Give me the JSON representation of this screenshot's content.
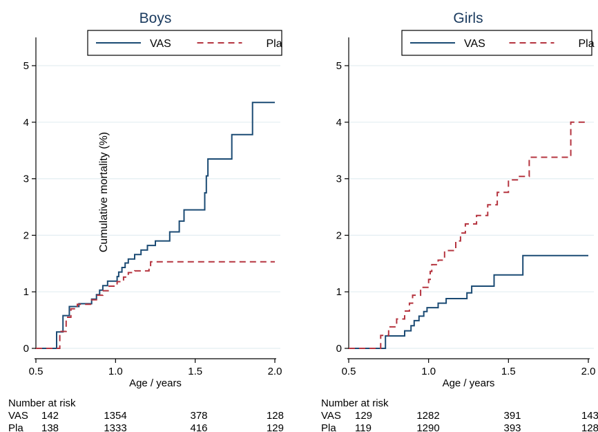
{
  "chart_data": [
    {
      "type": "line",
      "step": true,
      "title": "Boys",
      "xlabel": "Age / years",
      "ylabel": "Cumulative mortality (%)",
      "xlim": [
        0.5,
        2.0
      ],
      "ylim": [
        0,
        5.5
      ],
      "xticks": [
        0.5,
        1.0,
        1.5,
        2.0
      ],
      "xtick_labels": [
        "0.5",
        "1.0",
        "1.5",
        "2.0"
      ],
      "yticks": [
        0,
        1,
        2,
        3,
        4,
        5
      ],
      "ytick_labels": [
        "0",
        "1",
        "2",
        "3",
        "4",
        "5"
      ],
      "grid": true,
      "legend_position": "top-right",
      "series": [
        {
          "name": "VAS",
          "color": "#1a4a73",
          "dash": "solid",
          "points": [
            [
              0.5,
              0
            ],
            [
              0.63,
              0
            ],
            [
              0.63,
              0.29
            ],
            [
              0.67,
              0.29
            ],
            [
              0.67,
              0.58
            ],
            [
              0.71,
              0.58
            ],
            [
              0.71,
              0.74
            ],
            [
              0.77,
              0.74
            ],
            [
              0.77,
              0.79
            ],
            [
              0.85,
              0.79
            ],
            [
              0.85,
              0.87
            ],
            [
              0.88,
              0.87
            ],
            [
              0.88,
              0.95
            ],
            [
              0.9,
              0.95
            ],
            [
              0.9,
              1.03
            ],
            [
              0.92,
              1.03
            ],
            [
              0.92,
              1.11
            ],
            [
              0.95,
              1.11
            ],
            [
              0.95,
              1.19
            ],
            [
              1.01,
              1.19
            ],
            [
              1.01,
              1.27
            ],
            [
              1.02,
              1.27
            ],
            [
              1.02,
              1.35
            ],
            [
              1.04,
              1.35
            ],
            [
              1.04,
              1.43
            ],
            [
              1.06,
              1.43
            ],
            [
              1.06,
              1.51
            ],
            [
              1.08,
              1.51
            ],
            [
              1.08,
              1.58
            ],
            [
              1.12,
              1.58
            ],
            [
              1.12,
              1.66
            ],
            [
              1.16,
              1.66
            ],
            [
              1.16,
              1.74
            ],
            [
              1.2,
              1.74
            ],
            [
              1.2,
              1.82
            ],
            [
              1.25,
              1.82
            ],
            [
              1.25,
              1.9
            ],
            [
              1.34,
              1.9
            ],
            [
              1.34,
              2.06
            ],
            [
              1.4,
              2.06
            ],
            [
              1.4,
              2.25
            ],
            [
              1.43,
              2.25
            ],
            [
              1.43,
              2.45
            ],
            [
              1.56,
              2.45
            ],
            [
              1.56,
              2.75
            ],
            [
              1.57,
              2.75
            ],
            [
              1.57,
              3.05
            ],
            [
              1.58,
              3.05
            ],
            [
              1.58,
              3.35
            ],
            [
              1.73,
              3.35
            ],
            [
              1.73,
              3.78
            ],
            [
              1.86,
              3.78
            ],
            [
              1.86,
              4.35
            ],
            [
              2.0,
              4.35
            ]
          ]
        },
        {
          "name": "Pla",
          "color": "#b5343f",
          "dash": "dashed",
          "points": [
            [
              0.5,
              0
            ],
            [
              0.65,
              0
            ],
            [
              0.65,
              0.3
            ],
            [
              0.69,
              0.3
            ],
            [
              0.69,
              0.55
            ],
            [
              0.72,
              0.55
            ],
            [
              0.72,
              0.7
            ],
            [
              0.76,
              0.7
            ],
            [
              0.76,
              0.78
            ],
            [
              0.85,
              0.78
            ],
            [
              0.85,
              0.86
            ],
            [
              0.88,
              0.86
            ],
            [
              0.88,
              0.94
            ],
            [
              0.92,
              0.94
            ],
            [
              0.92,
              1.02
            ],
            [
              0.96,
              1.02
            ],
            [
              0.96,
              1.1
            ],
            [
              1.01,
              1.1
            ],
            [
              1.01,
              1.18
            ],
            [
              1.05,
              1.18
            ],
            [
              1.05,
              1.26
            ],
            [
              1.08,
              1.26
            ],
            [
              1.08,
              1.34
            ],
            [
              1.12,
              1.34
            ],
            [
              1.12,
              1.37
            ],
            [
              1.21,
              1.37
            ],
            [
              1.21,
              1.45
            ],
            [
              1.22,
              1.45
            ],
            [
              1.22,
              1.53
            ],
            [
              2.0,
              1.53
            ]
          ]
        }
      ],
      "risk_table": {
        "title": "Number at risk",
        "columns": [
          0.5,
          1.0,
          1.5,
          2.0
        ],
        "rows": [
          {
            "label": "VAS",
            "values": [
              "142",
              "1354",
              "378",
              "128"
            ]
          },
          {
            "label": "Pla",
            "values": [
              "138",
              "1333",
              "416",
              "129"
            ]
          }
        ]
      }
    },
    {
      "type": "line",
      "step": true,
      "title": "Girls",
      "xlabel": "Age / years",
      "ylabel": "",
      "xlim": [
        0.5,
        2.0
      ],
      "ylim": [
        0,
        5.5
      ],
      "xticks": [
        0.5,
        1.0,
        1.5,
        2.0
      ],
      "xtick_labels": [
        "0.5",
        "1.0",
        "1.5",
        "2.0"
      ],
      "yticks": [
        0,
        1,
        2,
        3,
        4,
        5
      ],
      "ytick_labels": [
        "0",
        "1",
        "2",
        "3",
        "4",
        "5"
      ],
      "grid": true,
      "legend_position": "top-right",
      "series": [
        {
          "name": "VAS",
          "color": "#1a4a73",
          "dash": "solid",
          "points": [
            [
              0.5,
              0
            ],
            [
              0.73,
              0
            ],
            [
              0.73,
              0.22
            ],
            [
              0.85,
              0.22
            ],
            [
              0.85,
              0.31
            ],
            [
              0.89,
              0.31
            ],
            [
              0.89,
              0.4
            ],
            [
              0.91,
              0.4
            ],
            [
              0.91,
              0.49
            ],
            [
              0.94,
              0.49
            ],
            [
              0.94,
              0.57
            ],
            [
              0.97,
              0.57
            ],
            [
              0.97,
              0.65
            ],
            [
              0.99,
              0.65
            ],
            [
              0.99,
              0.72
            ],
            [
              1.06,
              0.72
            ],
            [
              1.06,
              0.8
            ],
            [
              1.11,
              0.8
            ],
            [
              1.11,
              0.88
            ],
            [
              1.24,
              0.88
            ],
            [
              1.24,
              0.98
            ],
            [
              1.27,
              0.98
            ],
            [
              1.27,
              1.1
            ],
            [
              1.41,
              1.1
            ],
            [
              1.41,
              1.3
            ],
            [
              1.59,
              1.3
            ],
            [
              1.59,
              1.64
            ],
            [
              2.0,
              1.64
            ]
          ]
        },
        {
          "name": "Pla",
          "color": "#b5343f",
          "dash": "dashed",
          "points": [
            [
              0.5,
              0
            ],
            [
              0.7,
              0
            ],
            [
              0.7,
              0.23
            ],
            [
              0.75,
              0.23
            ],
            [
              0.75,
              0.38
            ],
            [
              0.8,
              0.38
            ],
            [
              0.8,
              0.52
            ],
            [
              0.85,
              0.52
            ],
            [
              0.85,
              0.66
            ],
            [
              0.88,
              0.66
            ],
            [
              0.88,
              0.8
            ],
            [
              0.9,
              0.8
            ],
            [
              0.9,
              0.94
            ],
            [
              0.95,
              0.94
            ],
            [
              0.95,
              1.08
            ],
            [
              1.0,
              1.08
            ],
            [
              1.0,
              1.22
            ],
            [
              1.01,
              1.22
            ],
            [
              1.01,
              1.36
            ],
            [
              1.02,
              1.36
            ],
            [
              1.02,
              1.48
            ],
            [
              1.06,
              1.48
            ],
            [
              1.06,
              1.56
            ],
            [
              1.1,
              1.56
            ],
            [
              1.1,
              1.73
            ],
            [
              1.17,
              1.73
            ],
            [
              1.17,
              1.9
            ],
            [
              1.2,
              1.9
            ],
            [
              1.2,
              2.04
            ],
            [
              1.23,
              2.04
            ],
            [
              1.23,
              2.2
            ],
            [
              1.3,
              2.2
            ],
            [
              1.3,
              2.35
            ],
            [
              1.37,
              2.35
            ],
            [
              1.37,
              2.54
            ],
            [
              1.43,
              2.54
            ],
            [
              1.43,
              2.76
            ],
            [
              1.5,
              2.76
            ],
            [
              1.5,
              2.98
            ],
            [
              1.56,
              2.98
            ],
            [
              1.56,
              3.04
            ],
            [
              1.63,
              3.04
            ],
            [
              1.63,
              3.38
            ],
            [
              1.89,
              3.38
            ],
            [
              1.89,
              4.0
            ],
            [
              2.0,
              4.0
            ]
          ]
        }
      ],
      "risk_table": {
        "title": "Number at risk",
        "columns": [
          0.5,
          1.0,
          1.5,
          2.0
        ],
        "rows": [
          {
            "label": "VAS",
            "values": [
              "129",
              "1282",
              "391",
              "143"
            ]
          },
          {
            "label": "Pla",
            "values": [
              "119",
              "1290",
              "393",
              "128"
            ]
          }
        ]
      }
    }
  ],
  "style": {
    "grid_color": "#e3eef1",
    "axis_color": "#000000",
    "title_color": "#1a3a5e",
    "text_color": "#000000"
  }
}
